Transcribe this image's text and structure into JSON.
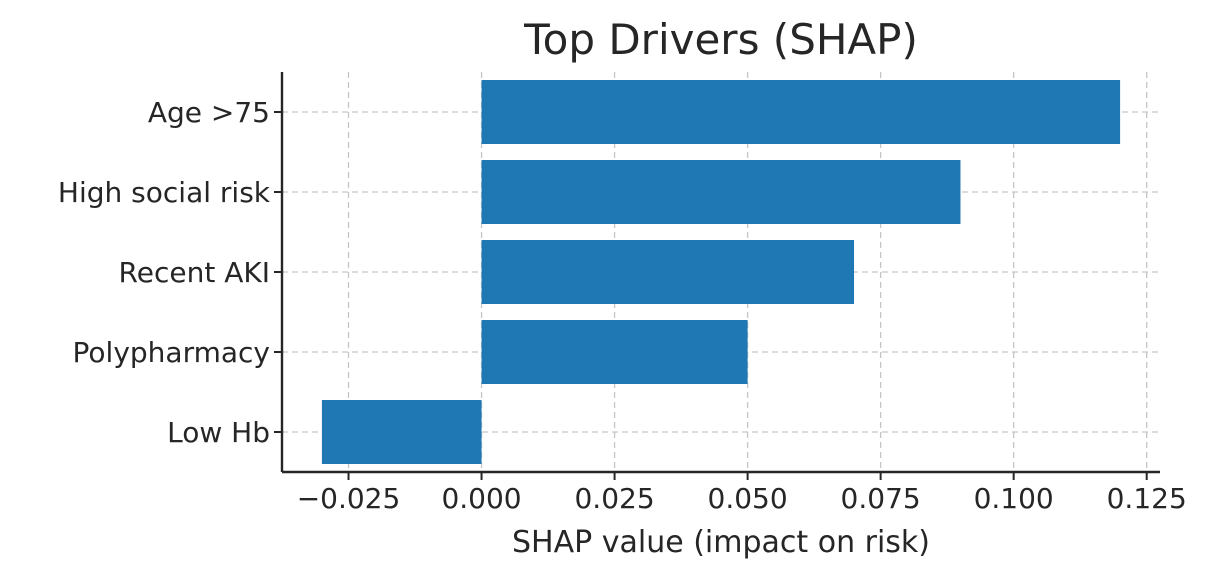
{
  "chart_data": {
    "type": "bar",
    "orientation": "horizontal",
    "title": "Top Drivers (SHAP)",
    "xlabel": "SHAP value (impact on risk)",
    "ylabel": "",
    "categories": [
      "Age >75",
      "High social risk",
      "Recent AKI",
      "Polypharmacy",
      "Low Hb"
    ],
    "values": [
      0.12,
      0.09,
      0.07,
      0.05,
      -0.03
    ],
    "xlim": [
      -0.0375,
      0.1275
    ],
    "xticks": [
      -0.025,
      0.0,
      0.025,
      0.05,
      0.075,
      0.1,
      0.125
    ],
    "xtick_labels": [
      "−0.025",
      "0.000",
      "0.025",
      "0.050",
      "0.075",
      "0.100",
      "0.125"
    ],
    "grid": true,
    "bar_color": "#1f77b4"
  }
}
